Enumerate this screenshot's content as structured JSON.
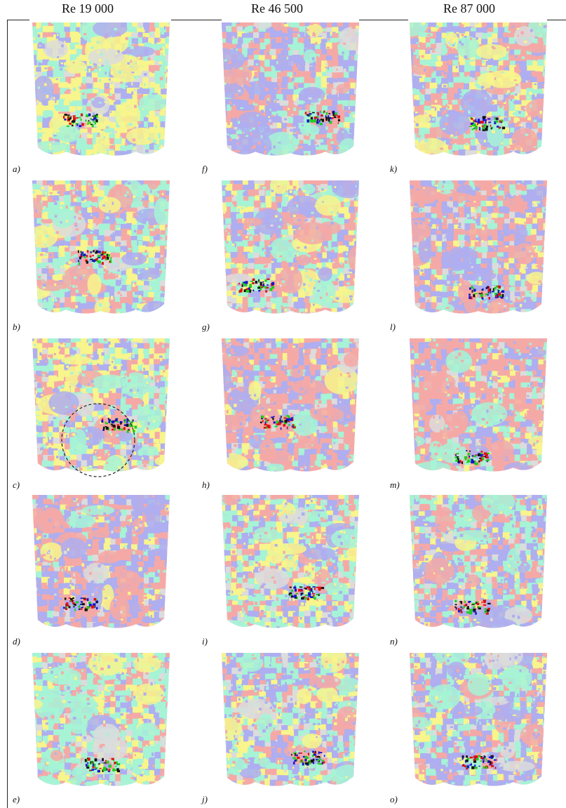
{
  "figure": {
    "columns": [
      {
        "title": "Re 19 000"
      },
      {
        "title": "Re 46 500"
      },
      {
        "title": "Re 87 000"
      }
    ],
    "panel_labels": [
      [
        "a)",
        "b)",
        "c)",
        "d)",
        "e)"
      ],
      [
        "f)",
        "g)",
        "h)",
        "i)",
        "j)"
      ],
      [
        "k)",
        "l)",
        "m)",
        "n)",
        "o)"
      ]
    ],
    "colors": {
      "yellow": "#f7f58c",
      "cyan": "#a6f3d6",
      "lavender": "#aeaef0",
      "salmon": "#f5a9a6",
      "light_gray": "#dcdcdc",
      "dark_blue": "#1414c8",
      "red": "#e01010",
      "green": "#22cc22",
      "black": "#111111"
    }
  }
}
